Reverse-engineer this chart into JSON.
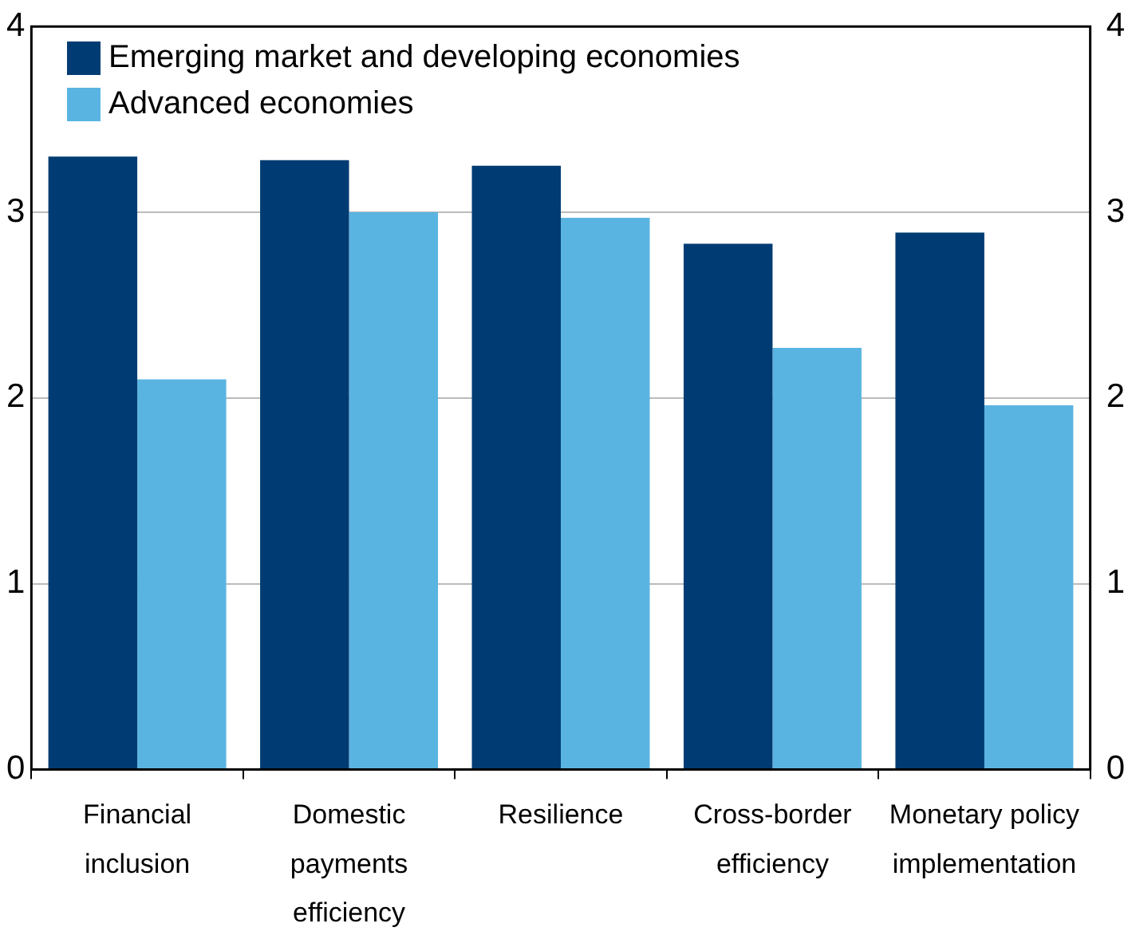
{
  "chart_data": {
    "type": "bar",
    "categories": [
      "Financial inclusion",
      "Domestic payments efficiency",
      "Resilience",
      "Cross-border efficiency",
      "Monetary policy implementation"
    ],
    "series": [
      {
        "name": "Emerging market and developing economies",
        "color": "#003c73",
        "values": [
          3.3,
          3.28,
          3.25,
          2.83,
          2.89
        ]
      },
      {
        "name": "Advanced economies",
        "color": "#5ab4e1",
        "values": [
          2.1,
          3.0,
          2.97,
          2.27,
          1.96
        ]
      }
    ],
    "ylim": [
      0,
      4
    ],
    "yticks": [
      0,
      1,
      2,
      3,
      4
    ],
    "y2lim": [
      0,
      4
    ],
    "y2ticks": [
      0,
      1,
      2,
      3,
      4
    ],
    "grid": "y",
    "legend": "top left"
  }
}
